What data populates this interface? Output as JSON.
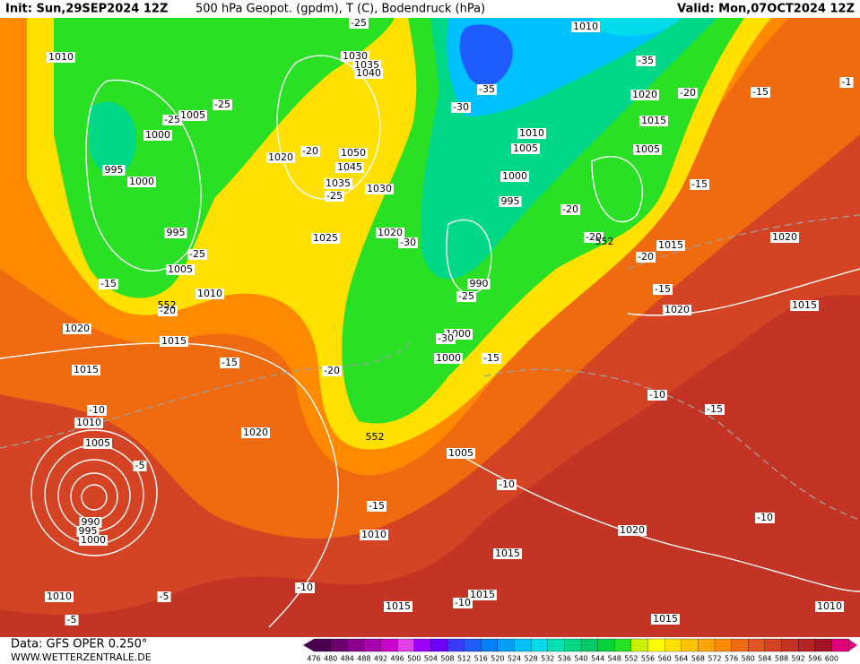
{
  "header": {
    "init": "Init: Sun,29SEP2024 12Z",
    "title": "500 hPa Geopot. (gpdm), T (C), Bodendruck (hPa)",
    "valid": "Valid: Mon,07OCT2024 12Z"
  },
  "footer": {
    "data": "Data: GFS OPER 0.250°",
    "site": "WWW.WETTERZENTRALE.DE"
  },
  "legend": {
    "levels": [
      476,
      480,
      484,
      488,
      492,
      496,
      500,
      504,
      508,
      512,
      516,
      520,
      524,
      528,
      532,
      536,
      540,
      544,
      548,
      552,
      556,
      560,
      564,
      568,
      572,
      576,
      580,
      584,
      588,
      592,
      596,
      600
    ],
    "colors": [
      "#4a0050",
      "#6a006e",
      "#8a008c",
      "#a800aa",
      "#c800c8",
      "#e040e8",
      "#9a00ff",
      "#6a00ff",
      "#3a3aff",
      "#1e5cff",
      "#0080ff",
      "#00a0ff",
      "#00c0ff",
      "#00dcea",
      "#00e0b4",
      "#00d888",
      "#00c864",
      "#00d23c",
      "#2ae024",
      "#c8f000",
      "#ffff00",
      "#ffe000",
      "#ffc400",
      "#ffa400",
      "#ff8a00",
      "#f06a10",
      "#e45420",
      "#d44424",
      "#c43424",
      "#b42424",
      "#a01424",
      "#e0007a"
    ]
  },
  "map": {
    "pressure_labels": [
      "1010",
      "1005",
      "1000",
      "995",
      "1000",
      "995",
      "1005",
      "1010",
      "1020",
      "1015",
      "1015",
      "1010",
      "1005",
      "990",
      "995",
      "1000",
      "1010",
      "1020",
      "1010",
      "1015",
      "1015",
      "1015",
      "1005",
      "1020",
      "1015",
      "1010",
      "1030",
      "1035",
      "1040",
      "1020",
      "1050",
      "1045",
      "1035",
      "1030",
      "1025",
      "1020",
      "995",
      "1000",
      "1005",
      "1010",
      "1010",
      "1020",
      "1015",
      "1005",
      "990",
      "1000",
      "1000",
      "1015",
      "1020",
      "1020",
      "1015"
    ],
    "temperature_labels": [
      "-25",
      "-35",
      "-35",
      "-30",
      "-25",
      "-25",
      "-20",
      "-25",
      "-30",
      "-25",
      "-15",
      "-20",
      "-25",
      "-30",
      "-15",
      "-20",
      "-15",
      "-10",
      "-5",
      "-15",
      "-10",
      "-10",
      "-5",
      "-5",
      "-10",
      "-20",
      "-15",
      "-1",
      "-15",
      "-20",
      "-20",
      "-20",
      "-15",
      "-10",
      "-15",
      "-10"
    ],
    "height_labels": [
      "552",
      "552",
      "552"
    ]
  }
}
